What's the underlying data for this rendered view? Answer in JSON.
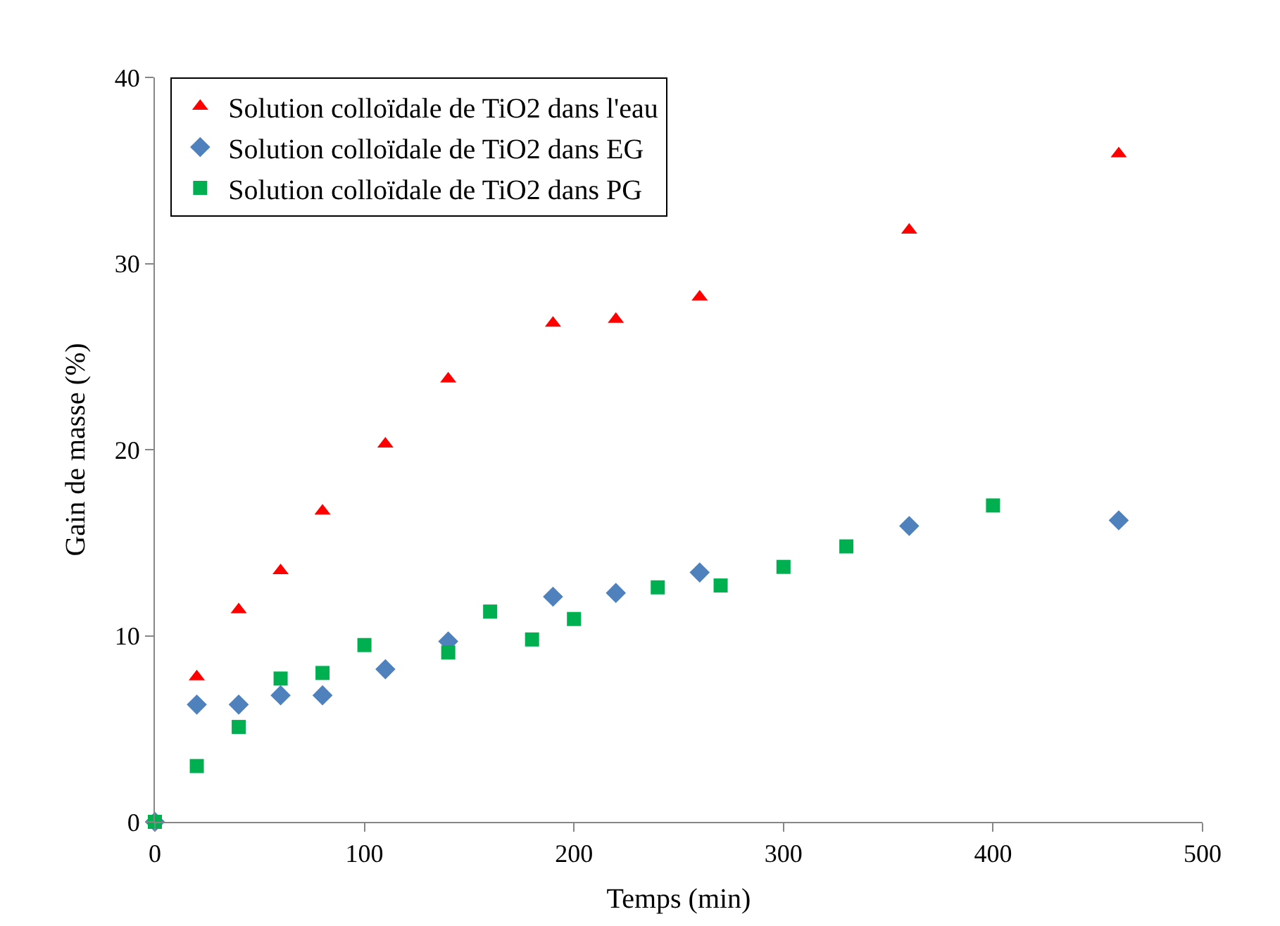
{
  "chart_data": {
    "type": "scatter",
    "xlabel": "Temps (min)",
    "ylabel": "Gain de masse (%)",
    "xlim": [
      0,
      500
    ],
    "xticks": [
      0,
      100,
      200,
      300,
      400,
      500
    ],
    "ylim": [
      0,
      40
    ],
    "yticks": [
      0,
      10,
      20,
      30,
      40
    ],
    "legend": "top left",
    "series": [
      {
        "name": "Solution colloïdale de TiO2 dans l'eau",
        "color": "#ff0000",
        "marker": "triangle",
        "x": [
          20,
          40,
          60,
          80,
          110,
          140,
          190,
          220,
          260,
          360,
          460
        ],
        "values": [
          7.8,
          11.4,
          13.5,
          16.7,
          20.3,
          23.8,
          26.8,
          27.0,
          28.2,
          31.8,
          35.9
        ]
      },
      {
        "name": "Solution colloïdale de TiO2 dans EG",
        "color": "#4f81bd",
        "marker": "diamond",
        "x": [
          0,
          20,
          40,
          60,
          80,
          110,
          140,
          190,
          220,
          260,
          360,
          460
        ],
        "values": [
          0,
          6.3,
          6.3,
          6.8,
          6.8,
          8.2,
          9.7,
          12.1,
          12.3,
          13.4,
          15.9,
          16.2
        ]
      },
      {
        "name": "Solution colloïdale de TiO2 dans PG",
        "color": "#00b050",
        "marker": "square",
        "x": [
          0,
          20,
          40,
          60,
          80,
          100,
          140,
          160,
          180,
          200,
          240,
          270,
          300,
          330,
          400
        ],
        "values": [
          0,
          3.0,
          5.1,
          7.7,
          8.0,
          9.5,
          9.1,
          11.3,
          9.8,
          10.9,
          12.6,
          12.7,
          13.7,
          14.8,
          17.0
        ]
      }
    ]
  }
}
